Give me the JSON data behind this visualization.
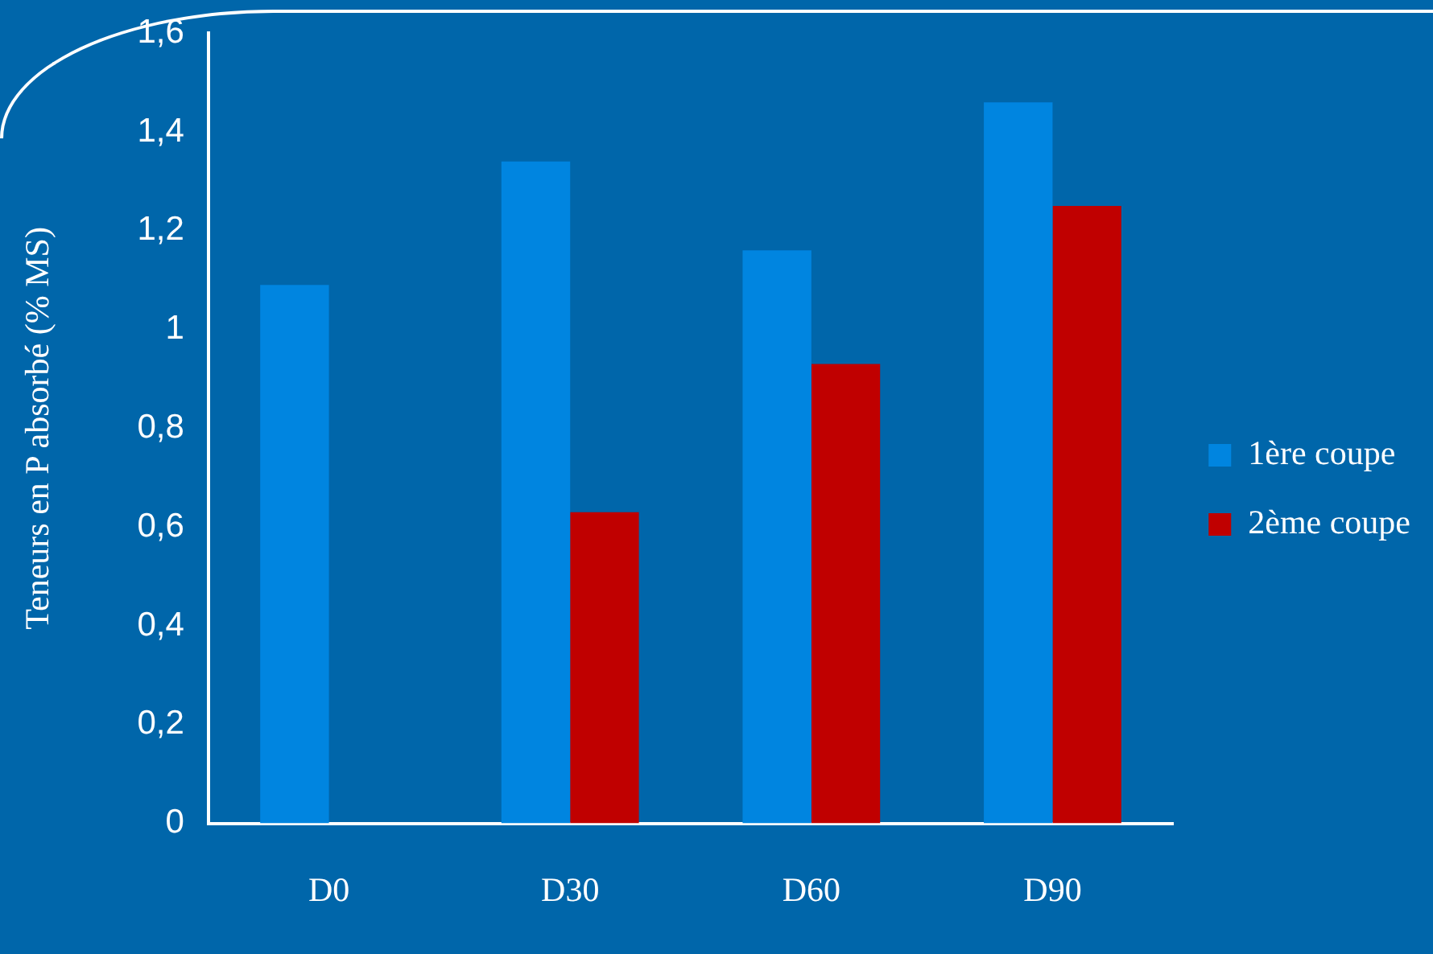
{
  "chart_data": {
    "type": "bar",
    "ylabel": "Teneurs en P absorbé (% MS)",
    "categories": [
      "D0",
      "D30",
      "D60",
      "D90"
    ],
    "series": [
      {
        "name": "1ère coupe",
        "color": "#0085e0",
        "values": [
          1.09,
          1.34,
          1.16,
          1.46
        ]
      },
      {
        "name": "2ème coupe",
        "color": "#c00000",
        "values": [
          null,
          0.63,
          0.93,
          1.25
        ]
      }
    ],
    "ylim": [
      0,
      1.6
    ],
    "yticks": [
      0,
      {
        "value": 0.2,
        "label": "0,2"
      },
      {
        "value": 0.4,
        "label": "0,4"
      },
      {
        "value": 0.6,
        "label": "0,6"
      },
      {
        "value": 0.8,
        "label": "0,8"
      },
      1,
      {
        "value": 1.2,
        "label": "1,2"
      },
      {
        "value": 1.4,
        "label": "1,4"
      },
      {
        "value": 1.6,
        "label": "1,6"
      }
    ],
    "legend": "right"
  }
}
